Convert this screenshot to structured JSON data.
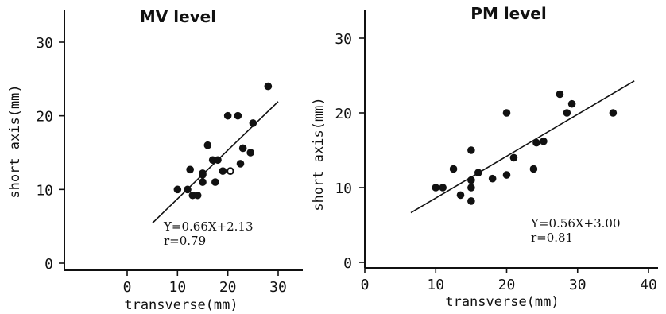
{
  "chart_data": [
    {
      "type": "scatter",
      "title": "MV level",
      "xlabel": "transverse(mm)",
      "ylabel": "short axis(mm)",
      "xlim": [
        -5,
        32
      ],
      "ylim": [
        0,
        32
      ],
      "xticks": [
        0,
        10,
        20,
        30
      ],
      "xtick_labels": [
        "0",
        "10",
        "20",
        "30"
      ],
      "yticks": [
        0,
        10,
        20,
        30
      ],
      "ytick_labels": [
        "0",
        "10",
        "20",
        "30"
      ],
      "grid": false,
      "points": [
        {
          "x": 10,
          "y": 10
        },
        {
          "x": 12,
          "y": 10
        },
        {
          "x": 12.5,
          "y": 12.7
        },
        {
          "x": 13,
          "y": 9.2
        },
        {
          "x": 14,
          "y": 9.2
        },
        {
          "x": 15,
          "y": 11
        },
        {
          "x": 15,
          "y": 12
        },
        {
          "x": 15,
          "y": 12.2
        },
        {
          "x": 16,
          "y": 16
        },
        {
          "x": 17,
          "y": 14
        },
        {
          "x": 17.5,
          "y": 11
        },
        {
          "x": 18,
          "y": 14
        },
        {
          "x": 19,
          "y": 12.5
        },
        {
          "x": 20,
          "y": 20
        },
        {
          "x": 20.5,
          "y": 12.5,
          "hollow": true
        },
        {
          "x": 22,
          "y": 20
        },
        {
          "x": 22.5,
          "y": 13.5
        },
        {
          "x": 23,
          "y": 15.6
        },
        {
          "x": 24.5,
          "y": 15
        },
        {
          "x": 25,
          "y": 19
        },
        {
          "x": 28,
          "y": 24
        }
      ],
      "regression": {
        "slope": 0.66,
        "intercept": 2.13,
        "x_range": [
          5,
          30
        ]
      },
      "annotations": [
        "Y=0.66X+2.13",
        "r=0.79"
      ]
    },
    {
      "type": "scatter",
      "title": "PM level",
      "xlabel": "transverse(mm)",
      "ylabel": "short axis(mm)",
      "xlim": [
        0,
        41
      ],
      "ylim": [
        0,
        32
      ],
      "xticks": [
        0,
        10,
        20,
        30,
        40
      ],
      "xtick_labels": [
        "0",
        "10",
        "20",
        "30",
        "40"
      ],
      "yticks": [
        0,
        10,
        20,
        30
      ],
      "ytick_labels": [
        "0",
        "10",
        "20",
        "30"
      ],
      "grid": false,
      "points": [
        {
          "x": 10,
          "y": 10
        },
        {
          "x": 11,
          "y": 10
        },
        {
          "x": 12.5,
          "y": 12.5
        },
        {
          "x": 13.5,
          "y": 9
        },
        {
          "x": 15,
          "y": 8.2
        },
        {
          "x": 15,
          "y": 10
        },
        {
          "x": 15,
          "y": 11
        },
        {
          "x": 15,
          "y": 15
        },
        {
          "x": 16,
          "y": 12
        },
        {
          "x": 18,
          "y": 11.2
        },
        {
          "x": 20,
          "y": 20
        },
        {
          "x": 20,
          "y": 11.7
        },
        {
          "x": 21,
          "y": 14
        },
        {
          "x": 23.8,
          "y": 12.5
        },
        {
          "x": 24.2,
          "y": 16
        },
        {
          "x": 25.2,
          "y": 16.2
        },
        {
          "x": 27.5,
          "y": 22.5
        },
        {
          "x": 28.5,
          "y": 20
        },
        {
          "x": 29.2,
          "y": 21.2
        },
        {
          "x": 35,
          "y": 20
        }
      ],
      "regression": {
        "slope": 0.56,
        "intercept": 3.0,
        "x_range": [
          6.5,
          38
        ]
      },
      "annotations": [
        "Y=0.56X+3.00",
        "r=0.81"
      ]
    }
  ]
}
